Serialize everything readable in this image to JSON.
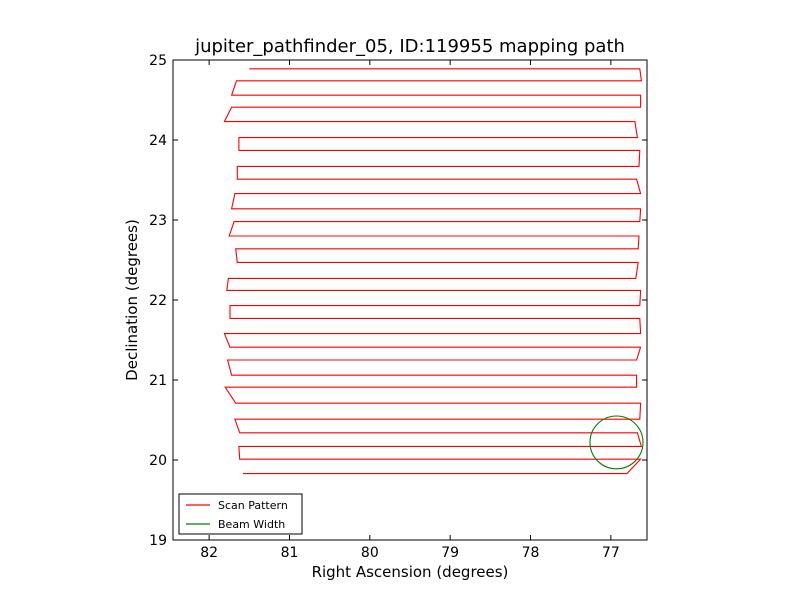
{
  "chart_data": {
    "type": "line",
    "title": "jupiter_pathfinder_05, ID:119955 mapping path",
    "xlabel": "Right Ascension (degrees)",
    "ylabel": "Declination (degrees)",
    "xlim": [
      82.45,
      76.55
    ],
    "ylim": [
      19,
      25
    ],
    "x_inverted": true,
    "xticks": [
      82,
      81,
      80,
      79,
      78,
      77
    ],
    "yticks": [
      19,
      20,
      21,
      22,
      23,
      24,
      25
    ],
    "xtick_labels": [
      "82",
      "81",
      "80",
      "79",
      "78",
      "77"
    ],
    "ytick_labels": [
      "19",
      "20",
      "21",
      "22",
      "23",
      "24",
      "25"
    ],
    "grid": false,
    "legend_position": "lower-left",
    "series": [
      {
        "name": "Scan Pattern",
        "color": "#ff0000",
        "kind": "raster-scan",
        "passes": [
          {
            "dec": 19.83,
            "ra_start": 81.58,
            "ra_end": 76.8
          },
          {
            "dec": 20.01,
            "ra_start": 76.63,
            "ra_end": 81.62
          },
          {
            "dec": 20.17,
            "ra_start": 81.63,
            "ra_end": 76.62
          },
          {
            "dec": 20.34,
            "ra_start": 76.67,
            "ra_end": 81.62
          },
          {
            "dec": 20.51,
            "ra_start": 81.68,
            "ra_end": 76.64
          },
          {
            "dec": 20.71,
            "ra_start": 76.63,
            "ra_end": 81.67
          },
          {
            "dec": 20.91,
            "ra_start": 81.8,
            "ra_end": 76.68
          },
          {
            "dec": 21.06,
            "ra_start": 76.68,
            "ra_end": 81.72
          },
          {
            "dec": 21.25,
            "ra_start": 81.77,
            "ra_end": 76.68
          },
          {
            "dec": 21.41,
            "ra_start": 76.63,
            "ra_end": 81.74
          },
          {
            "dec": 21.58,
            "ra_start": 81.81,
            "ra_end": 76.63
          },
          {
            "dec": 21.77,
            "ra_start": 76.64,
            "ra_end": 81.74
          },
          {
            "dec": 21.93,
            "ra_start": 81.74,
            "ra_end": 76.64
          },
          {
            "dec": 22.12,
            "ra_start": 76.63,
            "ra_end": 81.78
          },
          {
            "dec": 22.27,
            "ra_start": 81.76,
            "ra_end": 76.69
          },
          {
            "dec": 22.47,
            "ra_start": 76.66,
            "ra_end": 81.65
          },
          {
            "dec": 22.64,
            "ra_start": 81.67,
            "ra_end": 76.66
          },
          {
            "dec": 22.8,
            "ra_start": 76.65,
            "ra_end": 81.75
          },
          {
            "dec": 22.98,
            "ra_start": 81.69,
            "ra_end": 76.64
          },
          {
            "dec": 23.14,
            "ra_start": 76.63,
            "ra_end": 81.72
          },
          {
            "dec": 23.33,
            "ra_start": 81.68,
            "ra_end": 76.63
          },
          {
            "dec": 23.51,
            "ra_start": 76.68,
            "ra_end": 81.65
          },
          {
            "dec": 23.67,
            "ra_start": 81.65,
            "ra_end": 76.65
          },
          {
            "dec": 23.87,
            "ra_start": 76.64,
            "ra_end": 81.63
          },
          {
            "dec": 24.03,
            "ra_start": 81.63,
            "ra_end": 76.67
          },
          {
            "dec": 24.23,
            "ra_start": 76.7,
            "ra_end": 81.81
          },
          {
            "dec": 24.41,
            "ra_start": 81.72,
            "ra_end": 76.63
          },
          {
            "dec": 24.56,
            "ra_start": 76.63,
            "ra_end": 81.72
          },
          {
            "dec": 24.74,
            "ra_start": 81.66,
            "ra_end": 76.62
          },
          {
            "dec": 24.89,
            "ra_start": 76.64,
            "ra_end": 81.5
          }
        ]
      },
      {
        "name": "Beam Width",
        "color": "#008000",
        "kind": "circle",
        "center_ra": 76.93,
        "center_dec": 20.22,
        "radius_deg": 0.33
      }
    ]
  }
}
